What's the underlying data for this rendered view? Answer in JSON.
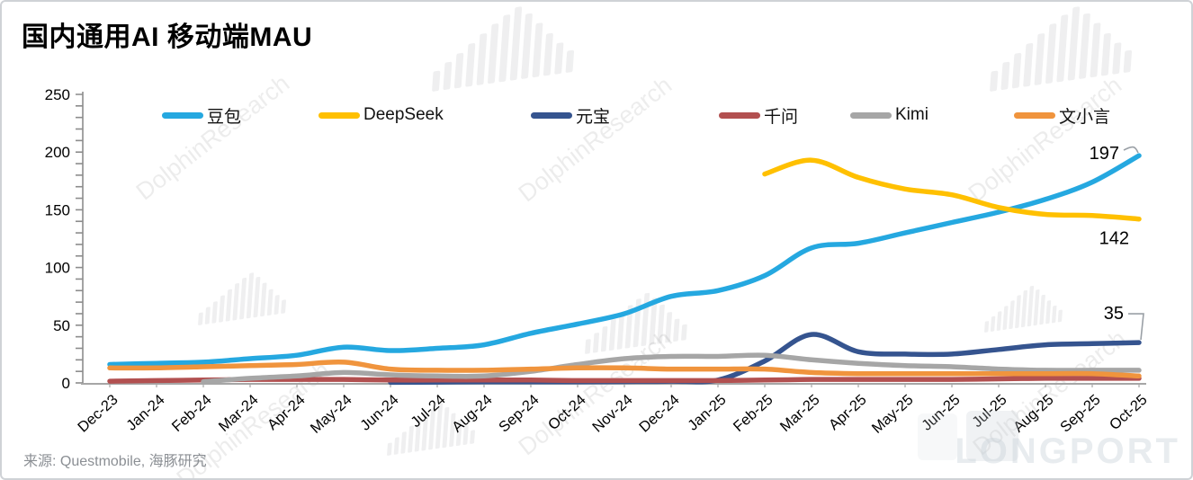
{
  "title": "国内通用AI 移动端MAU",
  "source": "来源: Questmobile, 海豚研究",
  "watermarks": {
    "diagonal_text": "DolphinResearch",
    "brand_text": "LONGPORT"
  },
  "chart_data": {
    "type": "line",
    "title": "国内通用AI 移动端MAU",
    "xlabel": "",
    "ylabel": "",
    "ylim": [
      0,
      250
    ],
    "y_tick_step": 50,
    "y_minor_tick_step": 10,
    "grid": false,
    "legend_position": "top",
    "categories": [
      "Dec-23",
      "Jan-24",
      "Feb-24",
      "Mar-24",
      "Apr-24",
      "May-24",
      "Jun-24",
      "Jul-24",
      "Aug-24",
      "Sep-24",
      "Oct-24",
      "Nov-24",
      "Dec-24",
      "Jan-25",
      "Feb-25",
      "Mar-25",
      "Apr-25",
      "May-25",
      "Jun-25",
      "Jul-25",
      "Aug-25",
      "Sep-25",
      "Oct-25"
    ],
    "series": [
      {
        "name": "豆包",
        "color": "#25A8E0",
        "values": [
          16,
          17,
          18,
          21,
          24,
          31,
          28,
          30,
          33,
          43,
          51,
          60,
          75,
          80,
          93,
          117,
          121,
          130,
          139,
          148,
          159,
          174,
          197
        ]
      },
      {
        "name": "DeepSeek",
        "color": "#FFC000",
        "values": [
          null,
          null,
          null,
          null,
          null,
          null,
          null,
          null,
          null,
          null,
          null,
          null,
          null,
          null,
          181,
          193,
          178,
          168,
          163,
          152,
          146,
          145,
          142
        ]
      },
      {
        "name": "元宝",
        "color": "#35548F",
        "values": [
          null,
          null,
          null,
          null,
          null,
          null,
          0.5,
          0.7,
          1,
          1,
          1,
          1.2,
          1.5,
          2.5,
          19,
          42,
          27,
          25,
          25,
          29,
          33,
          34,
          35
        ]
      },
      {
        "name": "千问",
        "color": "#B25050",
        "values": [
          1.5,
          2,
          2.5,
          3,
          3,
          3,
          2.5,
          2.5,
          2.5,
          2.5,
          2,
          2,
          2,
          2,
          2.5,
          3,
          3,
          3,
          3,
          3.5,
          4,
          4,
          4
        ]
      },
      {
        "name": "Kimi",
        "color": "#A6A6A6",
        "values": [
          null,
          null,
          1,
          4,
          6,
          9,
          7,
          6,
          6,
          10,
          16,
          21,
          23,
          23,
          24,
          20,
          17,
          15,
          14,
          12,
          11,
          11,
          11
        ]
      },
      {
        "name": "文小言",
        "color": "#F0943D",
        "values": [
          13,
          13,
          14,
          15,
          16,
          18,
          12,
          11,
          11,
          12,
          13,
          13,
          12,
          12,
          12,
          9,
          8,
          8,
          8,
          8,
          8,
          8,
          6
        ]
      }
    ],
    "annotations": [
      {
        "text": "197",
        "series": "豆包"
      },
      {
        "text": "142",
        "series": "DeepSeek"
      },
      {
        "text": "35",
        "series": "元宝"
      }
    ]
  }
}
